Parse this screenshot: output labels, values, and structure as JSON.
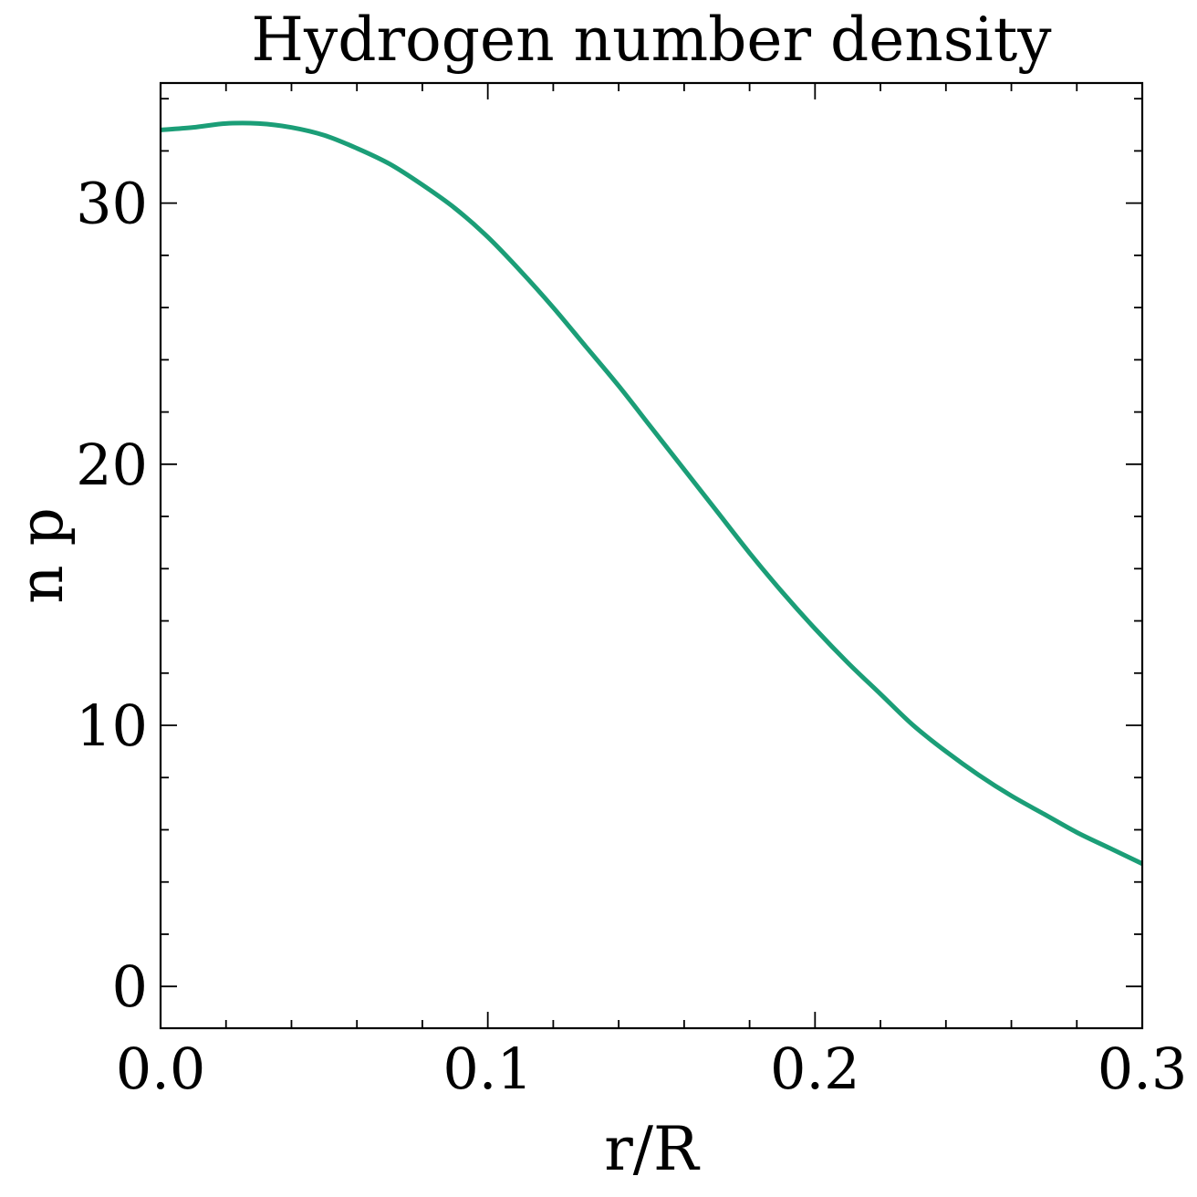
{
  "chart_data": {
    "type": "line",
    "title": "Hydrogen number density",
    "xlabel": "r/R",
    "ylabel": "n p",
    "xlim": [
      0.0,
      0.3
    ],
    "ylim": [
      -1.6,
      34.6
    ],
    "xticks": [
      0.0,
      0.1,
      0.2,
      0.3
    ],
    "xtick_labels": [
      "0.0",
      "0.1",
      "0.2",
      "0.3"
    ],
    "xminor_step": 0.02,
    "yticks": [
      0,
      10,
      20,
      30
    ],
    "ytick_labels": [
      "0",
      "10",
      "20",
      "30"
    ],
    "yminor_step": 2,
    "ticks_direction": "in",
    "ticks_on_all_sides": true,
    "grid": false,
    "series": [
      {
        "color": "#1b9e77",
        "x": [
          0.0,
          0.01,
          0.02,
          0.03,
          0.04,
          0.05,
          0.06,
          0.07,
          0.08,
          0.09,
          0.1,
          0.11,
          0.12,
          0.13,
          0.14,
          0.15,
          0.16,
          0.17,
          0.18,
          0.19,
          0.2,
          0.21,
          0.22,
          0.23,
          0.24,
          0.25,
          0.26,
          0.27,
          0.28,
          0.29,
          0.3
        ],
        "y": [
          32.8,
          32.9,
          33.05,
          33.05,
          32.9,
          32.6,
          32.1,
          31.5,
          30.7,
          29.8,
          28.7,
          27.4,
          26.0,
          24.5,
          23.0,
          21.4,
          19.8,
          18.2,
          16.6,
          15.1,
          13.7,
          12.4,
          11.2,
          10.0,
          9.0,
          8.1,
          7.3,
          6.6,
          5.9,
          5.3,
          4.7
        ]
      }
    ]
  }
}
